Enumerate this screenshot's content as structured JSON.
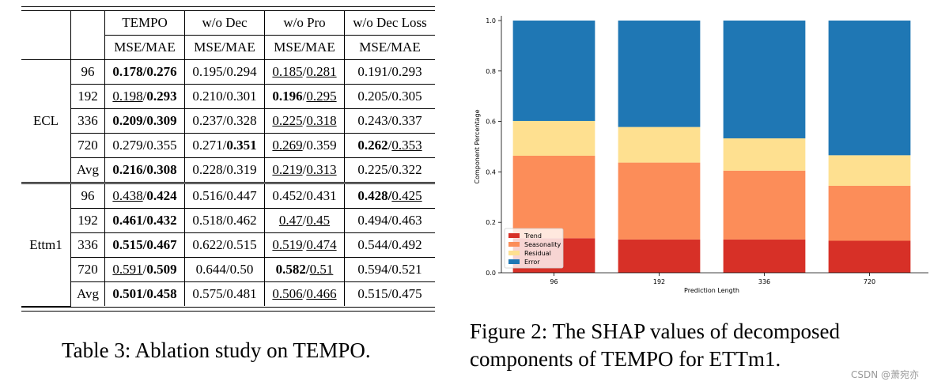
{
  "table": {
    "headers": {
      "col0": "",
      "col1": "",
      "methods": [
        "TEMPO",
        "w/o Dec",
        "w/o Pro",
        "w/o Dec Loss"
      ],
      "metric": "MSE/MAE"
    },
    "groups": [
      {
        "dataset": "ECL",
        "rows": [
          {
            "len": "96",
            "cells": [
              [
                [
                  "0.178/0.276",
                  "b"
                ]
              ],
              [
                [
                  "0.195/0.294",
                  ""
                ]
              ],
              [
                [
                  "0.185",
                  "u"
                ],
                [
                  "/",
                  ""
                ],
                [
                  "0.281",
                  "u"
                ]
              ],
              [
                [
                  "0.191/0.293",
                  ""
                ]
              ]
            ]
          },
          {
            "len": "192",
            "cells": [
              [
                [
                  "0.198",
                  "u"
                ],
                [
                  "/",
                  ""
                ],
                [
                  "0.293",
                  "b"
                ]
              ],
              [
                [
                  "0.210/0.301",
                  ""
                ]
              ],
              [
                [
                  "0.196",
                  "b"
                ],
                [
                  "/",
                  ""
                ],
                [
                  "0.295",
                  "u"
                ]
              ],
              [
                [
                  "0.205/0.305",
                  ""
                ]
              ]
            ]
          },
          {
            "len": "336",
            "cells": [
              [
                [
                  "0.209/0.309",
                  "b"
                ]
              ],
              [
                [
                  "0.237/0.328",
                  ""
                ]
              ],
              [
                [
                  "0.225",
                  "u"
                ],
                [
                  "/",
                  ""
                ],
                [
                  "0.318",
                  "u"
                ]
              ],
              [
                [
                  "0.243/0.337",
                  ""
                ]
              ]
            ]
          },
          {
            "len": "720",
            "cells": [
              [
                [
                  "0.279/0.355",
                  ""
                ]
              ],
              [
                [
                  "0.271/",
                  ""
                ],
                [
                  "0.351",
                  "b"
                ]
              ],
              [
                [
                  "0.269",
                  "u"
                ],
                [
                  "/0.359",
                  ""
                ]
              ],
              [
                [
                  "0.262",
                  "b"
                ],
                [
                  "/",
                  ""
                ],
                [
                  "0.353",
                  "u"
                ]
              ]
            ]
          },
          {
            "len": "Avg",
            "cells": [
              [
                [
                  "0.216/0.308",
                  "b"
                ]
              ],
              [
                [
                  "0.228/0.319",
                  ""
                ]
              ],
              [
                [
                  "0.219",
                  "u"
                ],
                [
                  "/",
                  ""
                ],
                [
                  "0.313",
                  "u"
                ]
              ],
              [
                [
                  "0.225/0.322",
                  ""
                ]
              ]
            ]
          }
        ]
      },
      {
        "dataset": "Ettm1",
        "rows": [
          {
            "len": "96",
            "cells": [
              [
                [
                  "0.438",
                  "u"
                ],
                [
                  "/",
                  ""
                ],
                [
                  "0.424",
                  "b"
                ]
              ],
              [
                [
                  "0.516/0.447",
                  ""
                ]
              ],
              [
                [
                  "0.452/0.431",
                  ""
                ]
              ],
              [
                [
                  "0.428/",
                  "b"
                ],
                [
                  "0.425",
                  "u"
                ]
              ]
            ]
          },
          {
            "len": "192",
            "cells": [
              [
                [
                  "0.461/0.432",
                  "b"
                ]
              ],
              [
                [
                  "0.518/0.462",
                  ""
                ]
              ],
              [
                [
                  "0.47",
                  "u"
                ],
                [
                  "/",
                  ""
                ],
                [
                  "0.45",
                  "u"
                ]
              ],
              [
                [
                  "0.494/0.463",
                  ""
                ]
              ]
            ]
          },
          {
            "len": "336",
            "cells": [
              [
                [
                  "0.515/0.467",
                  "b"
                ]
              ],
              [
                [
                  "0.622/0.515",
                  ""
                ]
              ],
              [
                [
                  "0.519",
                  "u"
                ],
                [
                  "/",
                  ""
                ],
                [
                  "0.474",
                  "u"
                ]
              ],
              [
                [
                  "0.544/0.492",
                  ""
                ]
              ]
            ]
          },
          {
            "len": "720",
            "cells": [
              [
                [
                  "0.591",
                  "u"
                ],
                [
                  "/",
                  ""
                ],
                [
                  "0.509",
                  "b"
                ]
              ],
              [
                [
                  "0.644/0.50",
                  ""
                ]
              ],
              [
                [
                  "0.582/",
                  "b"
                ],
                [
                  "0.51",
                  "u"
                ]
              ],
              [
                [
                  "0.594/0.521",
                  ""
                ]
              ]
            ]
          },
          {
            "len": "Avg",
            "cells": [
              [
                [
                  "0.501/0.458",
                  "b"
                ]
              ],
              [
                [
                  "0.575/0.481",
                  ""
                ]
              ],
              [
                [
                  "0.506",
                  "u"
                ],
                [
                  "/",
                  ""
                ],
                [
                  "0.466",
                  "u"
                ]
              ],
              [
                [
                  "0.515/0.475",
                  ""
                ]
              ]
            ]
          }
        ]
      }
    ],
    "caption": "Table 3: Ablation study on TEMPO."
  },
  "figure": {
    "caption": "Figure 2: The SHAP values of decomposed components of TEMPO for ETTm1."
  },
  "chart_data": {
    "type": "bar",
    "stacked": true,
    "categories": [
      "96",
      "192",
      "336",
      "720"
    ],
    "xlabel": "Prediction Length",
    "ylabel": "Component Percentage",
    "ylim": [
      0,
      1.0
    ],
    "yticks": [
      "0.0",
      "0.2",
      "0.4",
      "0.6",
      "0.8",
      "1.0"
    ],
    "legend_position": "lower-left",
    "series": [
      {
        "name": "Trend",
        "color": "#d73027",
        "values": [
          0.137,
          0.132,
          0.132,
          0.127
        ]
      },
      {
        "name": "Seasonality",
        "color": "#fc8d59",
        "values": [
          0.327,
          0.305,
          0.273,
          0.218
        ]
      },
      {
        "name": "Residual",
        "color": "#fee090",
        "values": [
          0.138,
          0.141,
          0.128,
          0.121
        ]
      },
      {
        "name": "Error",
        "color": "#1f77b4",
        "values": [
          0.398,
          0.422,
          0.467,
          0.534
        ]
      }
    ]
  },
  "watermark": "CSDN @萧宛亦"
}
